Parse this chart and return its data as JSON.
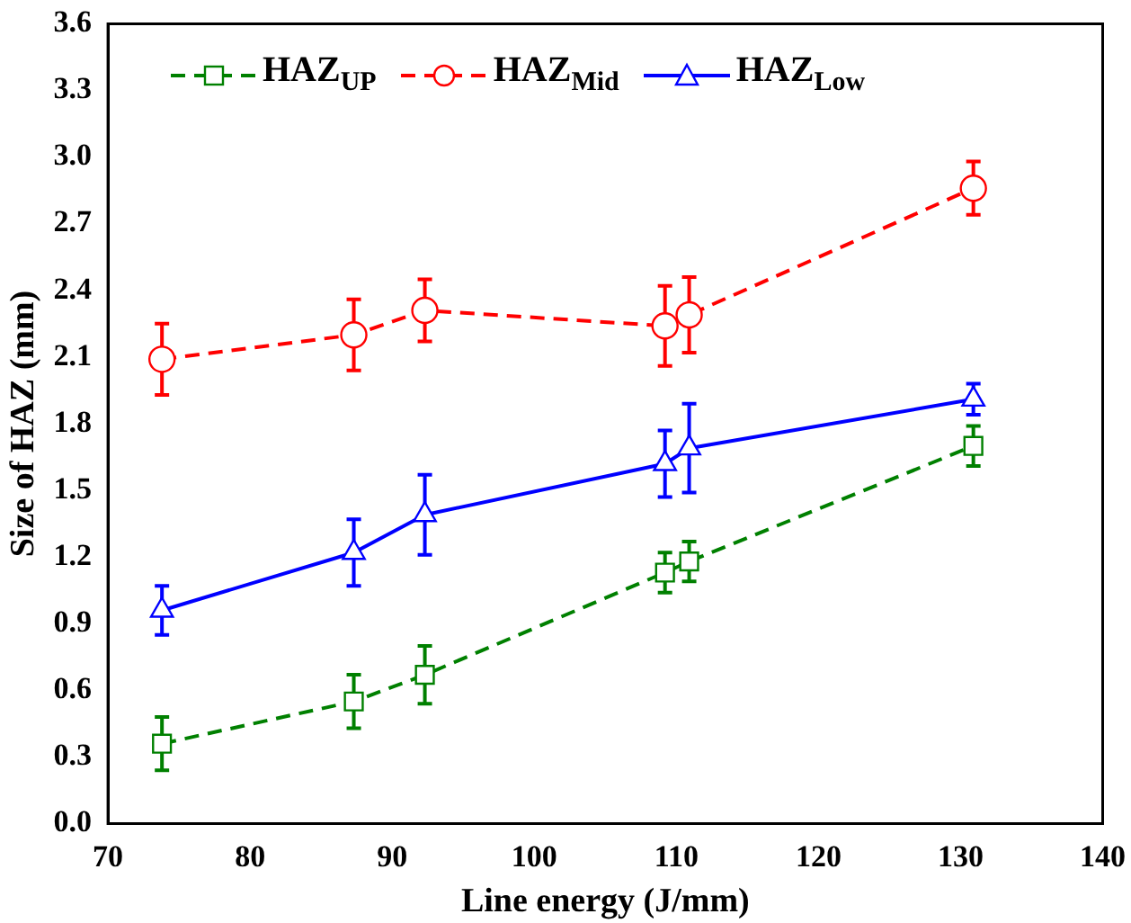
{
  "chart_data": {
    "type": "line",
    "xlabel": "Line energy (J/mm)",
    "ylabel": "Size of HAZ (mm)",
    "x": [
      73.8,
      87.3,
      92.3,
      109.2,
      110.9,
      130.9
    ],
    "series": [
      {
        "name": "HAZ$_{UP}$",
        "color": "#008000",
        "line_style": "dashed",
        "marker": "square",
        "values": [
          0.36,
          0.55,
          0.67,
          1.13,
          1.18,
          1.7
        ],
        "errors": [
          0.12,
          0.12,
          0.13,
          0.09,
          0.09,
          0.09
        ]
      },
      {
        "name": "HAZ$_{Mid}$",
        "color": "#ff0000",
        "line_style": "dashed",
        "marker": "circle",
        "values": [
          2.09,
          2.2,
          2.31,
          2.24,
          2.29,
          2.86
        ],
        "errors": [
          0.16,
          0.16,
          0.14,
          0.18,
          0.17,
          0.12
        ]
      },
      {
        "name": "HAZ$_{Low}$",
        "color": "#0000ff",
        "line_style": "solid",
        "marker": "triangle",
        "values": [
          0.96,
          1.22,
          1.39,
          1.62,
          1.69,
          1.91
        ],
        "errors": [
          0.11,
          0.15,
          0.18,
          0.15,
          0.2,
          0.07
        ]
      }
    ],
    "xlim": [
      70,
      140
    ],
    "xticks": [
      70,
      80,
      90,
      100,
      110,
      120,
      130,
      140
    ],
    "ylim": [
      0,
      3.6
    ],
    "yticks": [
      {
        "value": 0,
        "label": "0.0"
      },
      {
        "value": 0.3,
        "label": "0.3"
      },
      {
        "value": 0.6,
        "label": "0.6"
      },
      {
        "value": 0.9,
        "label": "0.9"
      },
      {
        "value": 1.2,
        "label": "1.2"
      },
      {
        "value": 1.5,
        "label": "1.5"
      },
      {
        "value": 1.8,
        "label": "1.8"
      },
      {
        "value": 2.1,
        "label": "2.1"
      },
      {
        "value": 2.4,
        "label": "2.4"
      },
      {
        "value": 2.7,
        "label": "2.7"
      },
      {
        "value": 3,
        "label": "3.0"
      },
      {
        "value": 3.3,
        "label": "3.3"
      },
      {
        "value": 3.6,
        "label": "3.6"
      }
    ],
    "grid": false,
    "legend": "top"
  }
}
